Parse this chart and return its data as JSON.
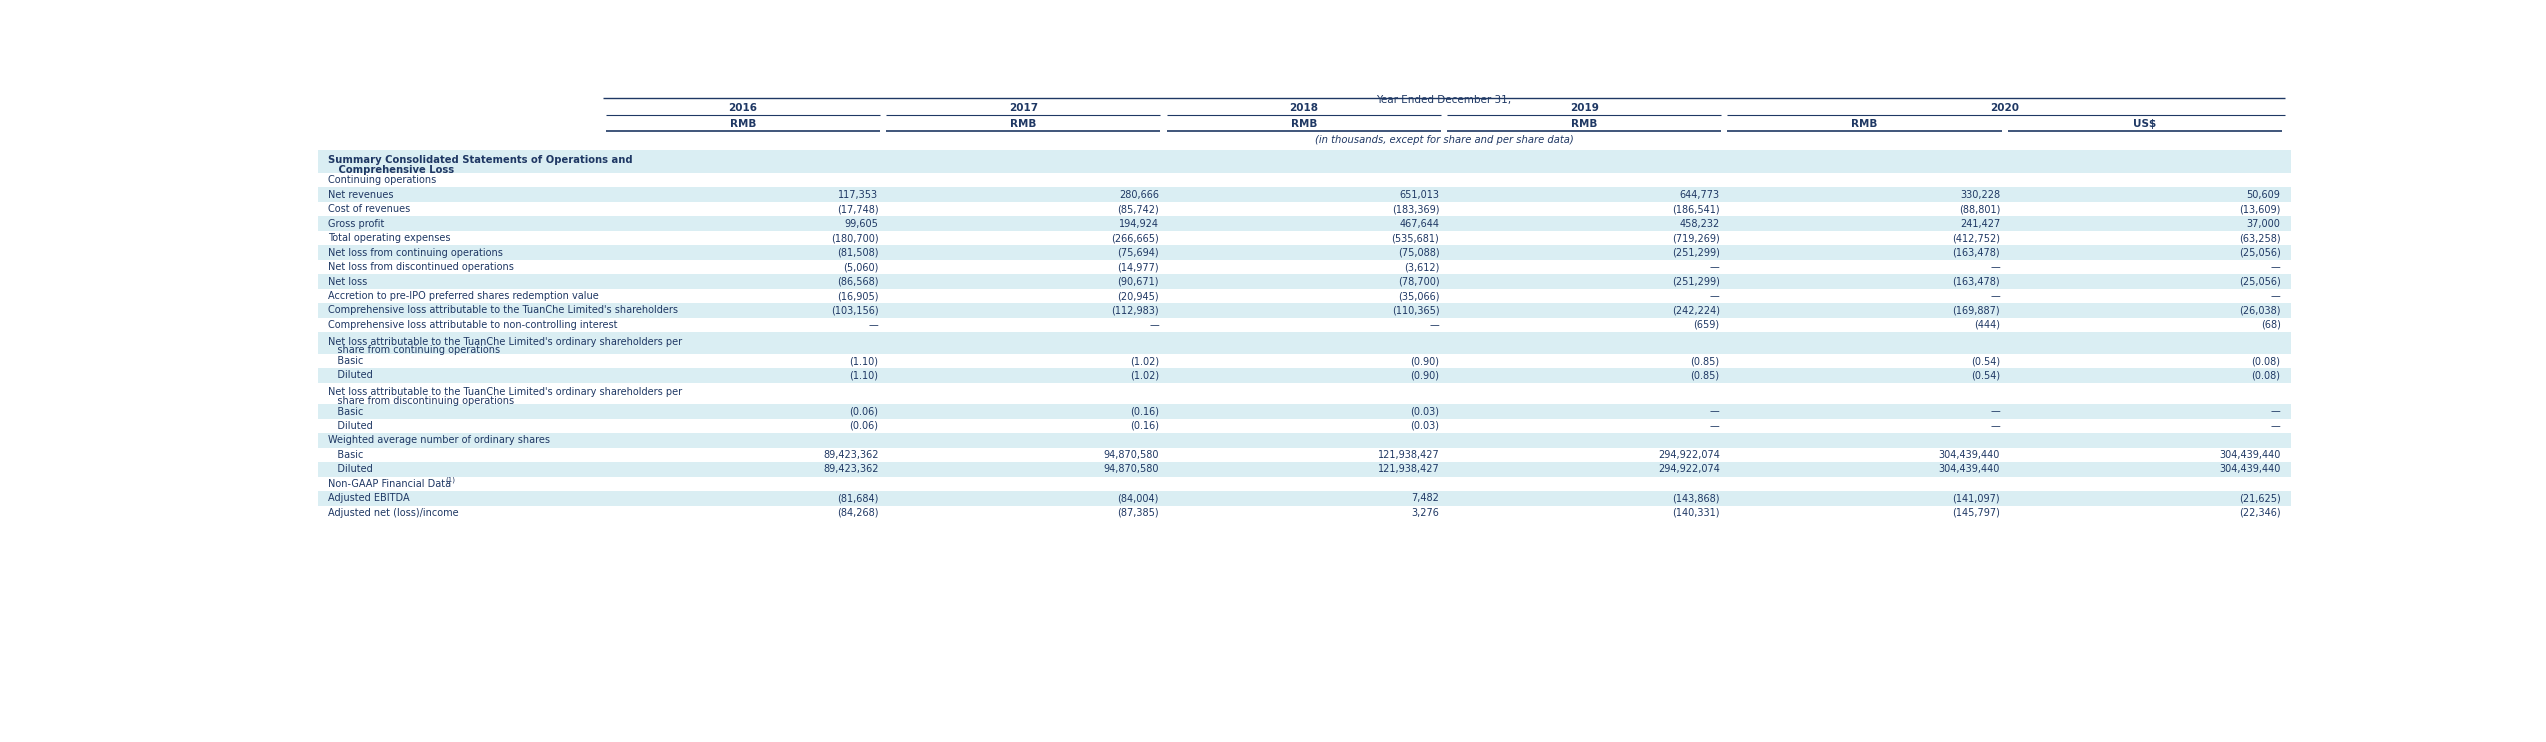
{
  "header_top": "Year Ended December 31,",
  "years": [
    "2016",
    "2017",
    "2018",
    "2019",
    "2020"
  ],
  "currencies": [
    "RMB",
    "RMB",
    "RMB",
    "RMB",
    "RMB",
    "US$"
  ],
  "note": "(in thousands, except for share and per share data)",
  "rows": [
    {
      "label": "Summary Consolidated Statements of Operations and",
      "label2": "   Comprehensive Loss",
      "values": [
        "",
        "",
        "",
        "",
        "",
        ""
      ],
      "type": "section_bold"
    },
    {
      "label": "Continuing operations",
      "values": [
        "",
        "",
        "",
        "",
        "",
        ""
      ],
      "type": "plain"
    },
    {
      "label": "Net revenues",
      "values": [
        "117,353",
        "280,666",
        "651,013",
        "644,773",
        "330,228",
        "50,609"
      ],
      "type": "data"
    },
    {
      "label": "Cost of revenues",
      "values": [
        "(17,748)",
        "(85,742)",
        "(183,369)",
        "(186,541)",
        "(88,801)",
        "(13,609)"
      ],
      "type": "data"
    },
    {
      "label": "Gross profit",
      "values": [
        "99,605",
        "194,924",
        "467,644",
        "458,232",
        "241,427",
        "37,000"
      ],
      "type": "data"
    },
    {
      "label": "Total operating expenses",
      "values": [
        "(180,700)",
        "(266,665)",
        "(535,681)",
        "(719,269)",
        "(412,752)",
        "(63,258)"
      ],
      "type": "data"
    },
    {
      "label": "Net loss from continuing operations",
      "values": [
        "(81,508)",
        "(75,694)",
        "(75,088)",
        "(251,299)",
        "(163,478)",
        "(25,056)"
      ],
      "type": "data"
    },
    {
      "label": "Net loss from discontinued operations",
      "values": [
        "(5,060)",
        "(14,977)",
        "(3,612)",
        "—",
        "—",
        "—"
      ],
      "type": "data"
    },
    {
      "label": "Net loss",
      "values": [
        "(86,568)",
        "(90,671)",
        "(78,700)",
        "(251,299)",
        "(163,478)",
        "(25,056)"
      ],
      "type": "data"
    },
    {
      "label": "Accretion to pre-IPO preferred shares redemption value",
      "values": [
        "(16,905)",
        "(20,945)",
        "(35,066)",
        "—",
        "—",
        "—"
      ],
      "type": "data"
    },
    {
      "label": "Comprehensive loss attributable to the TuanChe Limited's shareholders",
      "values": [
        "(103,156)",
        "(112,983)",
        "(110,365)",
        "(242,224)",
        "(169,887)",
        "(26,038)"
      ],
      "type": "data"
    },
    {
      "label": "Comprehensive loss attributable to non-controlling interest",
      "values": [
        "—",
        "—",
        "—",
        "(659)",
        "(444)",
        "(68)"
      ],
      "type": "data"
    },
    {
      "label": "Net loss attributable to the TuanChe Limited's ordinary shareholders per",
      "label2": "   share from continuing operations",
      "values": [
        "",
        "",
        "",
        "",
        "",
        ""
      ],
      "type": "multiline"
    },
    {
      "label": "   Basic",
      "values": [
        "(1.10)",
        "(1.02)",
        "(0.90)",
        "(0.85)",
        "(0.54)",
        "(0.08)"
      ],
      "type": "data"
    },
    {
      "label": "   Diluted",
      "values": [
        "(1.10)",
        "(1.02)",
        "(0.90)",
        "(0.85)",
        "(0.54)",
        "(0.08)"
      ],
      "type": "data"
    },
    {
      "label": "Net loss attributable to the TuanChe Limited's ordinary shareholders per",
      "label2": "   share from discontinuing operations",
      "values": [
        "",
        "",
        "",
        "",
        "",
        ""
      ],
      "type": "multiline"
    },
    {
      "label": "   Basic",
      "values": [
        "(0.06)",
        "(0.16)",
        "(0.03)",
        "—",
        "—",
        "—"
      ],
      "type": "data"
    },
    {
      "label": "   Diluted",
      "values": [
        "(0.06)",
        "(0.16)",
        "(0.03)",
        "—",
        "—",
        "—"
      ],
      "type": "data"
    },
    {
      "label": "Weighted average number of ordinary shares",
      "values": [
        "",
        "",
        "",
        "",
        "",
        ""
      ],
      "type": "plain"
    },
    {
      "label": "   Basic",
      "values": [
        "89,423,362",
        "94,870,580",
        "121,938,427",
        "294,922,074",
        "304,439,440",
        "304,439,440"
      ],
      "type": "data"
    },
    {
      "label": "   Diluted",
      "values": [
        "89,423,362",
        "94,870,580",
        "121,938,427",
        "294,922,074",
        "304,439,440",
        "304,439,440"
      ],
      "type": "data"
    }
  ],
  "non_gaap_rows": [
    {
      "label": "Non-GAAP Financial Data",
      "superscript": "(1)",
      "values": [
        "",
        "",
        "",
        "",
        "",
        ""
      ],
      "type": "plain"
    },
    {
      "label": "Adjusted EBITDA",
      "values": [
        "(81,684)",
        "(84,004)",
        "7,482",
        "(143,868)",
        "(141,097)",
        "(21,625)"
      ],
      "type": "data"
    },
    {
      "label": "Adjusted net (loss)/income",
      "values": [
        "(84,268)",
        "(87,385)",
        "3,276",
        "(140,331)",
        "(145,797)",
        "(22,346)"
      ],
      "type": "data"
    }
  ],
  "bg_light": "#daeef3",
  "bg_white": "#ffffff",
  "text_color": "#1f3864",
  "fig_w": 25.46,
  "fig_h": 7.42,
  "dpi": 100
}
